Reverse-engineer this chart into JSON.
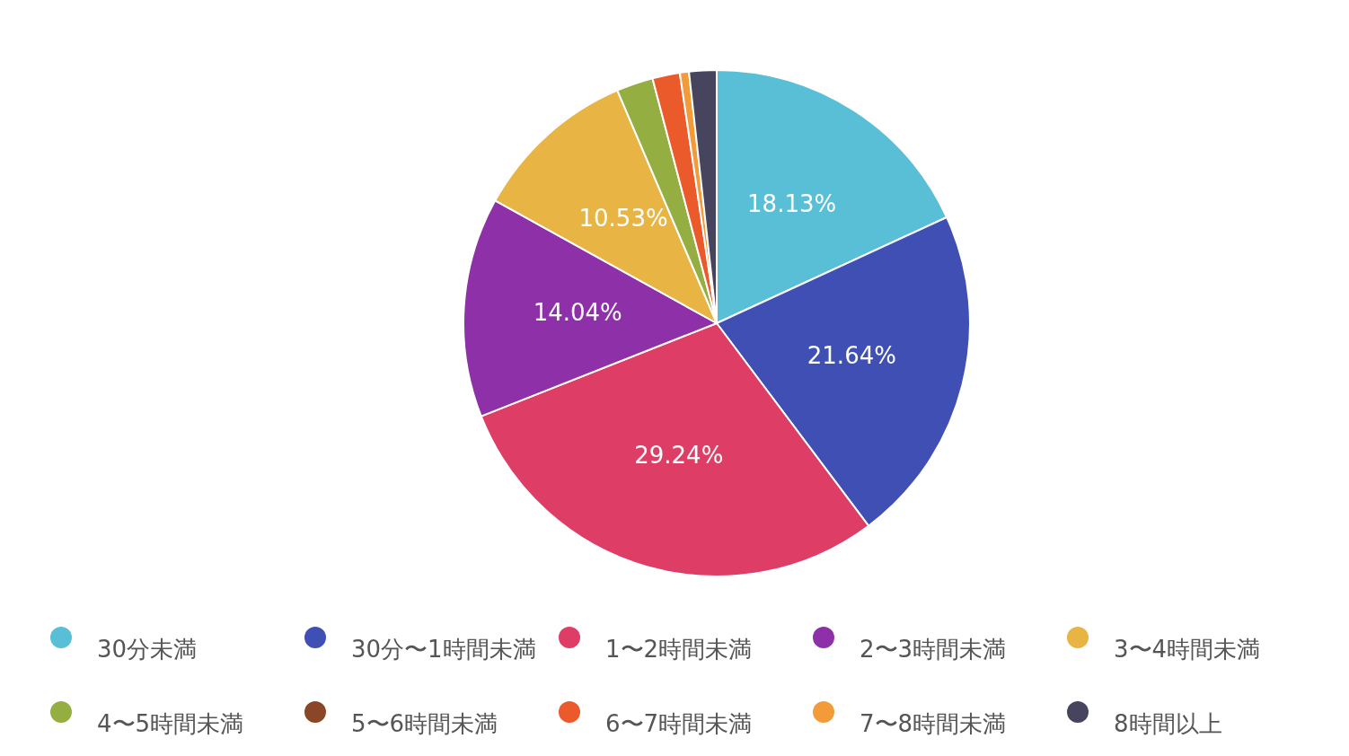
{
  "chart_data": {
    "type": "pie",
    "categories": [
      "30分未満",
      "30分〜1時間未満",
      "1〜2時間未満",
      "2〜3時間未満",
      "3〜4時間未満",
      "4〜5時間未満",
      "5〜6時間未満",
      "6〜7時間未満",
      "7〜8時間未満",
      "8時間以上"
    ],
    "values": [
      18.13,
      21.64,
      29.24,
      14.04,
      10.53,
      2.34,
      0,
      1.75,
      0.58,
      1.75
    ],
    "colors": [
      "#58bfd6",
      "#3f4fb3",
      "#de3d65",
      "#8e30a8",
      "#e8b545",
      "#95ae42",
      "#8a4727",
      "#eb5a2b",
      "#f29b38",
      "#47445e"
    ],
    "value_labels": [
      "18.13%",
      "21.64%",
      "29.24%",
      "14.04%",
      "10.53%",
      null,
      null,
      null,
      null,
      null
    ],
    "legend": "bottom"
  }
}
